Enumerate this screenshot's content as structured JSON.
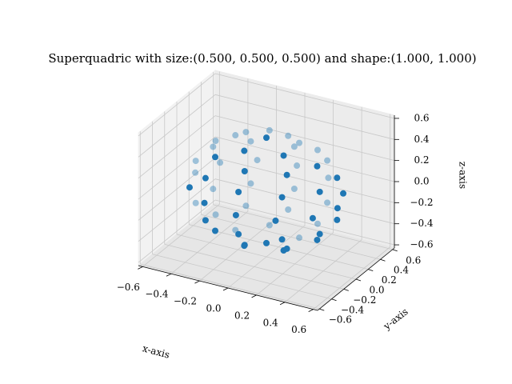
{
  "chart_data": {
    "type": "scatter3d",
    "title": "Superquadric with size:(0.500, 0.500, 0.500) and shape:(1.000, 1.000)",
    "xlabel": "x-axis",
    "ylabel": "y-axis",
    "zlabel": "z-axis",
    "color": "#1f77b4",
    "grid": true,
    "xlim": [
      -0.63,
      0.63
    ],
    "ylim": [
      -0.63,
      0.63
    ],
    "zlim": [
      -0.63,
      0.63
    ],
    "xticks": [
      {
        "value": -0.6,
        "label": "−0.6"
      },
      {
        "value": -0.4,
        "label": "−0.4"
      },
      {
        "value": -0.2,
        "label": "−0.2"
      },
      {
        "value": 0,
        "label": "0.0"
      },
      0.2,
      0.4,
      0.6
    ],
    "yticks": [
      {
        "value": -0.6,
        "label": "−0.6"
      },
      {
        "value": -0.4,
        "label": "−0.4"
      },
      {
        "value": -0.2,
        "label": "−0.2"
      },
      {
        "value": 0,
        "label": "0.0"
      },
      0.2,
      0.4,
      0.6
    ],
    "zticks": [
      {
        "value": -0.6,
        "label": "−0.6"
      },
      {
        "value": -0.4,
        "label": "−0.4"
      },
      {
        "value": -0.2,
        "label": "−0.2"
      },
      {
        "value": 0,
        "label": "0.0"
      },
      0.2,
      0.4,
      0.6
    ],
    "x": [
      0.5,
      0.433,
      0.25,
      0,
      -0.25,
      -0.433,
      -0.5,
      -0.433,
      -0.25,
      0,
      0.25,
      0.433,
      0.436,
      0.269,
      0,
      -0.269,
      -0.436,
      -0.436,
      -0.269,
      0,
      0.269,
      0.436,
      0.436,
      0.269,
      0,
      -0.269,
      -0.436,
      -0.436,
      -0.269,
      0,
      0.269,
      0.436,
      0.357,
      0.252,
      0,
      -0.252,
      -0.357,
      -0.252,
      0,
      0.252,
      0.357,
      0.252,
      0,
      -0.252,
      -0.357,
      -0.252,
      0,
      0.252,
      0.176,
      -0.067,
      -0.218,
      -0.067,
      0.176,
      0.176,
      -0.067,
      -0.218,
      -0.067,
      0.176,
      0,
      0
    ],
    "y": [
      0,
      0.25,
      0.433,
      0.5,
      0.433,
      0.25,
      0,
      -0.25,
      -0.433,
      -0.5,
      -0.433,
      -0.25,
      0.142,
      0.371,
      0.458,
      0.371,
      0.142,
      -0.142,
      -0.371,
      -0.458,
      -0.371,
      -0.142,
      0.142,
      0.371,
      0.458,
      0.371,
      0.142,
      -0.142,
      -0.371,
      -0.458,
      -0.371,
      -0.142,
      0,
      0.252,
      0.357,
      0.252,
      0,
      -0.252,
      -0.357,
      -0.252,
      0,
      0.252,
      0.357,
      0.252,
      0,
      -0.252,
      -0.357,
      -0.252,
      0.128,
      0.207,
      0,
      -0.207,
      -0.128,
      0.128,
      0.207,
      0,
      -0.207,
      -0.128,
      0,
      0
    ],
    "z": [
      0,
      0,
      0,
      0,
      0,
      0,
      0,
      0,
      0,
      0,
      0,
      0,
      0.2,
      0.2,
      0.2,
      0.2,
      0.2,
      0.2,
      0.2,
      0.2,
      0.2,
      0.2,
      -0.2,
      -0.2,
      -0.2,
      -0.2,
      -0.2,
      -0.2,
      -0.2,
      -0.2,
      -0.2,
      -0.2,
      0.35,
      0.35,
      0.35,
      0.35,
      0.35,
      0.35,
      0.35,
      0.35,
      -0.35,
      -0.35,
      -0.35,
      -0.35,
      -0.35,
      -0.35,
      -0.35,
      -0.35,
      0.45,
      0.45,
      0.45,
      0.45,
      0.45,
      -0.45,
      -0.45,
      -0.45,
      -0.45,
      -0.45,
      0.5,
      -0.5
    ]
  }
}
